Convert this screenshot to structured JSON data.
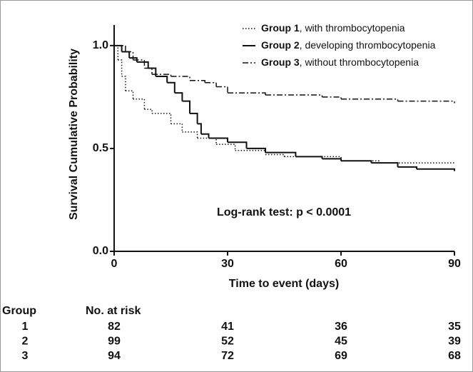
{
  "chart_data": {
    "type": "kaplan-meier",
    "ylabel": "Survival Cumulative Probability",
    "xlabel": "Time to event (days)",
    "annotation": "Log-rank test: p < 0.0001",
    "xlim": [
      0,
      90
    ],
    "ylim": [
      0,
      1.1
    ],
    "xticks": [
      0,
      30,
      60,
      90
    ],
    "yticks": [
      {
        "value": 0,
        "label": "0.0"
      },
      {
        "value": 0.5,
        "label": "0.5"
      },
      {
        "value": 1,
        "label": "1.0"
      }
    ],
    "series": [
      {
        "name": "Group 1",
        "description": ", with thrombocytopenia",
        "color": "#111111",
        "dash": "dotted",
        "x": [
          0,
          1,
          2,
          3,
          5,
          8,
          10,
          15,
          18,
          22,
          27,
          32,
          40,
          45,
          60,
          70,
          90
        ],
        "values": [
          1.0,
          0.93,
          0.85,
          0.78,
          0.74,
          0.69,
          0.67,
          0.62,
          0.58,
          0.55,
          0.52,
          0.49,
          0.47,
          0.46,
          0.44,
          0.43,
          0.43
        ]
      },
      {
        "name": "Group 2",
        "description": ", developing thrombocytopenia",
        "color": "#111111",
        "dash": "solid",
        "x": [
          0,
          2,
          4,
          6,
          9,
          11,
          14,
          16,
          18,
          20,
          22,
          23,
          25,
          30,
          35,
          40,
          48,
          55,
          60,
          68,
          75,
          80,
          90
        ],
        "values": [
          1.0,
          0.97,
          0.94,
          0.92,
          0.89,
          0.85,
          0.82,
          0.77,
          0.73,
          0.67,
          0.62,
          0.57,
          0.55,
          0.53,
          0.5,
          0.48,
          0.46,
          0.45,
          0.44,
          0.43,
          0.41,
          0.4,
          0.39
        ]
      },
      {
        "name": "Group 3",
        "description": ", without thrombocytopenia",
        "color": "#111111",
        "dash": "dashdot",
        "x": [
          0,
          3,
          5,
          8,
          10,
          15,
          20,
          24,
          27,
          30,
          40,
          55,
          60,
          75,
          90
        ],
        "values": [
          1.0,
          0.97,
          0.93,
          0.89,
          0.86,
          0.85,
          0.83,
          0.82,
          0.8,
          0.77,
          0.76,
          0.75,
          0.74,
          0.73,
          0.72
        ]
      }
    ],
    "risk_table": {
      "group_header": "Group",
      "header": "No. at risk",
      "rows": [
        {
          "group": "1",
          "values": [
            82,
            41,
            36,
            35
          ]
        },
        {
          "group": "2",
          "values": [
            99,
            52,
            45,
            39
          ]
        },
        {
          "group": "3",
          "values": [
            94,
            72,
            69,
            68
          ]
        }
      ]
    }
  }
}
